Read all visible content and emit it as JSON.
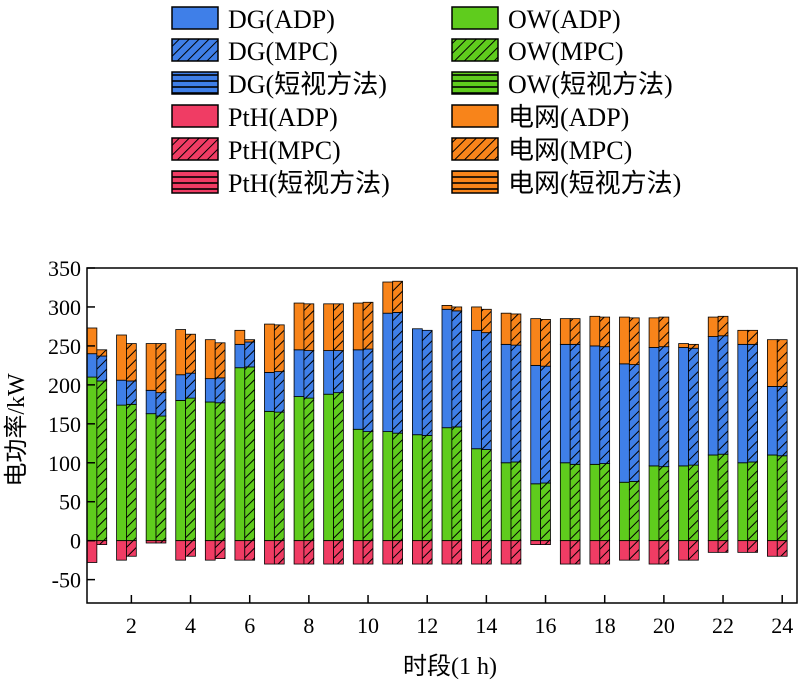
{
  "colors": {
    "DG": "#3f7fe8",
    "OW": "#5fcc1d",
    "PtH": "#f03c64",
    "Grid": "#f8841a"
  },
  "legend": [
    {
      "label": "DG(ADP)",
      "color_key": "DG",
      "pattern": "solid"
    },
    {
      "label": "OW(ADP)",
      "color_key": "OW",
      "pattern": "solid"
    },
    {
      "label": "DG(MPC)",
      "color_key": "DG",
      "pattern": "diag"
    },
    {
      "label": "OW(MPC)",
      "color_key": "OW",
      "pattern": "diag"
    },
    {
      "label": "DG(短视方法)",
      "color_key": "DG",
      "pattern": "horiz"
    },
    {
      "label": "OW(短视方法)",
      "color_key": "OW",
      "pattern": "horiz"
    },
    {
      "label": "PtH(ADP)",
      "color_key": "PtH",
      "pattern": "solid"
    },
    {
      "label": "电网(ADP)",
      "color_key": "Grid",
      "pattern": "solid"
    },
    {
      "label": "PtH(MPC)",
      "color_key": "PtH",
      "pattern": "diag"
    },
    {
      "label": "电网(MPC)",
      "color_key": "Grid",
      "pattern": "diag"
    },
    {
      "label": "PtH(短视方法)",
      "color_key": "PtH",
      "pattern": "horiz"
    },
    {
      "label": "电网(短视方法)",
      "color_key": "Grid",
      "pattern": "horiz"
    }
  ],
  "chart_data": {
    "type": "bar",
    "stacked": true,
    "grouped": true,
    "xlabel": "时段(1 h)",
    "ylabel": "电功率/kW",
    "ylim": [
      -80,
      350
    ],
    "yticks": [
      -50,
      0,
      50,
      100,
      150,
      200,
      250,
      300,
      350
    ],
    "xticks": [
      2,
      4,
      6,
      8,
      10,
      12,
      14,
      16,
      18,
      20,
      22,
      24
    ],
    "x": [
      1,
      2,
      3,
      4,
      5,
      6,
      7,
      8,
      9,
      10,
      11,
      12,
      13,
      14,
      15,
      16,
      17,
      18,
      19,
      20,
      21,
      22,
      23,
      24
    ],
    "groups": [
      "ADP",
      "MPC",
      "短视方法"
    ],
    "components": [
      "OW",
      "DG",
      "Grid",
      "PtH"
    ],
    "series": [
      {
        "method": "ADP",
        "pattern": "solid",
        "OW": [
          210,
          174,
          163,
          180,
          178,
          222,
          166,
          185,
          188,
          143,
          140,
          136,
          145,
          118,
          100,
          73,
          100,
          98,
          75,
          96,
          96,
          110,
          100,
          110
        ],
        "DG": [
          30,
          32,
          30,
          33,
          30,
          30,
          50,
          60,
          56,
          102,
          152,
          136,
          152,
          152,
          152,
          152,
          152,
          152,
          152,
          152,
          152,
          152,
          152,
          88
        ],
        "Grid": [
          33,
          58,
          60,
          58,
          50,
          18,
          62,
          60,
          60,
          60,
          40,
          0,
          5,
          30,
          40,
          60,
          33,
          38,
          60,
          38,
          5,
          25,
          18,
          60
        ],
        "PtH": [
          -28,
          -25,
          -3,
          -25,
          -25,
          -25,
          -30,
          -30,
          -30,
          -30,
          -30,
          -30,
          -30,
          -30,
          -30,
          -5,
          -30,
          -30,
          -25,
          -30,
          -25,
          -15,
          -15,
          -20
        ]
      },
      {
        "method": "MPC",
        "pattern": "diag",
        "OW": [
          205,
          175,
          160,
          183,
          177,
          223,
          165,
          183,
          190,
          140,
          138,
          135,
          146,
          117,
          101,
          74,
          98,
          99,
          76,
          95,
          97,
          111,
          101,
          109
        ],
        "DG": [
          32,
          30,
          30,
          32,
          32,
          32,
          52,
          61,
          54,
          106,
          155,
          135,
          149,
          150,
          150,
          150,
          154,
          150,
          150,
          154,
          150,
          152,
          151,
          89
        ],
        "Grid": [
          8,
          48,
          63,
          50,
          45,
          3,
          60,
          60,
          60,
          60,
          40,
          0,
          5,
          30,
          40,
          60,
          33,
          38,
          60,
          38,
          5,
          25,
          18,
          60
        ],
        "PtH": [
          -5,
          -20,
          -3,
          -20,
          -23,
          -25,
          -30,
          -30,
          -30,
          -30,
          -30,
          -30,
          -30,
          -30,
          -30,
          -5,
          -30,
          -30,
          -25,
          -30,
          -25,
          -15,
          -15,
          -20
        ]
      },
      {
        "method": "短视方法",
        "pattern": "horiz",
        "OW": [
          0,
          0,
          0,
          0,
          0,
          0,
          0,
          0,
          0,
          0,
          0,
          0,
          0,
          0,
          0,
          0,
          0,
          0,
          0,
          0,
          0,
          0,
          0,
          0
        ],
        "DG": [
          0,
          0,
          0,
          0,
          0,
          0,
          0,
          0,
          0,
          0,
          0,
          0,
          0,
          0,
          0,
          0,
          0,
          0,
          0,
          0,
          0,
          0,
          0,
          0
        ],
        "Grid": [
          0,
          0,
          0,
          0,
          0,
          0,
          0,
          0,
          0,
          0,
          0,
          0,
          0,
          0,
          0,
          0,
          0,
          0,
          0,
          0,
          0,
          0,
          0,
          0
        ],
        "PtH": [
          0,
          0,
          0,
          0,
          0,
          0,
          0,
          0,
          0,
          0,
          0,
          0,
          0,
          0,
          0,
          0,
          0,
          0,
          0,
          0,
          0,
          0,
          0,
          0
        ]
      }
    ]
  }
}
